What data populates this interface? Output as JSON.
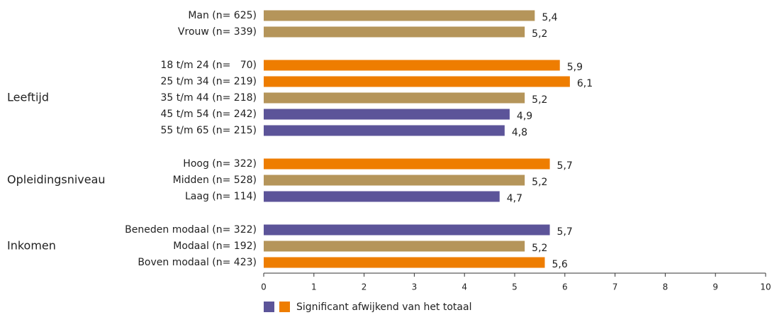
{
  "chart_data": {
    "type": "barh",
    "groups": [
      {
        "name": null,
        "categories": [
          "Man (n= 625)",
          "Vrouw (n= 339)"
        ],
        "values": [
          5.4,
          5.2
        ],
        "value_labels": [
          "5,4",
          "5,2"
        ],
        "colors": [
          "#b5955a",
          "#b5955a"
        ]
      },
      {
        "name": "Leeftijd",
        "categories": [
          "18 t/m 24 (n=   70)",
          "25 t/m 34 (n= 219)",
          "35 t/m 44 (n= 218)",
          "45 t/m 54 (n= 242)",
          "55 t/m 65 (n= 215)"
        ],
        "values": [
          5.9,
          6.1,
          5.2,
          4.9,
          4.8
        ],
        "value_labels": [
          "5,9",
          "6,1",
          "5,2",
          "4,9",
          "4,8"
        ],
        "colors": [
          "#ee7d00",
          "#ee7d00",
          "#b5955a",
          "#5c5499",
          "#5c5499"
        ]
      },
      {
        "name": "Opleidingsniveau",
        "categories": [
          "Hoog (n= 322)",
          "Midden (n= 528)",
          "Laag (n= 114)"
        ],
        "values": [
          5.7,
          5.2,
          4.7
        ],
        "value_labels": [
          "5,7",
          "5,2",
          "4,7"
        ],
        "colors": [
          "#ee7d00",
          "#b5955a",
          "#5c5499"
        ]
      },
      {
        "name": "Inkomen",
        "categories": [
          "Beneden modaal (n= 322)",
          "Modaal (n= 192)",
          "Boven modaal (n= 423)"
        ],
        "values": [
          5.7,
          5.2,
          5.6
        ],
        "value_labels": [
          "5,7",
          "5,2",
          "5,6"
        ],
        "colors": [
          "#5c5499",
          "#b5955a",
          "#ee7d00"
        ]
      }
    ],
    "xlim": [
      0,
      10
    ],
    "xticks": [
      0,
      1,
      2,
      3,
      4,
      5,
      6,
      7,
      8,
      9,
      10
    ],
    "legend": {
      "label": "Significant afwijkend van het totaal",
      "colors": [
        "#5c5499",
        "#ee7d00"
      ]
    }
  }
}
